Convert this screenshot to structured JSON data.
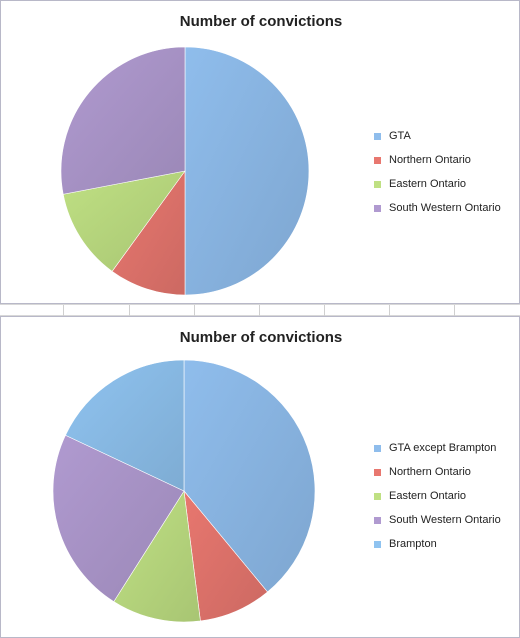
{
  "chart_data": [
    {
      "type": "pie",
      "title": "Number of convictions",
      "legend_position": "right",
      "categories": [
        "GTA",
        "Northern Ontario",
        "Eastern Ontario",
        "South Western Ontario"
      ],
      "values": [
        50,
        10,
        12,
        28
      ],
      "colors": [
        "#8fbdec",
        "#e8776f",
        "#bfe083",
        "#b09ad0"
      ]
    },
    {
      "type": "pie",
      "title": "Number of convictions",
      "legend_position": "right",
      "categories": [
        "GTA except Brampton",
        "Northern Ontario",
        "Eastern Ontario",
        "South Western Ontario",
        "Brampton"
      ],
      "values": [
        39,
        9,
        11,
        23,
        18
      ],
      "colors": [
        "#8fbdec",
        "#e8776f",
        "#bfe083",
        "#b09ad0",
        "#8fc3f0"
      ]
    }
  ]
}
